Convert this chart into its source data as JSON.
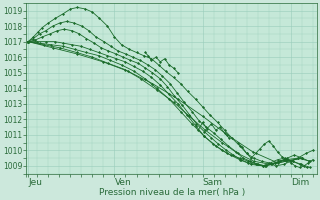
{
  "bg_color": "#cce8dc",
  "plot_bg": "#c5e8d8",
  "grid_color": "#99ccbb",
  "line_color": "#1a6b2a",
  "marker_color": "#1a6b2a",
  "axis_label": "Pression niveau de la mer( hPa )",
  "day_labels": [
    "Jeu",
    "Ven",
    "Sam",
    "Dim"
  ],
  "ylim": [
    1008.5,
    1019.5
  ],
  "yticks": [
    1009,
    1010,
    1011,
    1012,
    1013,
    1014,
    1015,
    1016,
    1017,
    1018,
    1019
  ],
  "xlim": [
    0,
    3.3
  ],
  "day_positions": [
    0.02,
    1.0,
    2.0,
    3.0
  ],
  "series": [
    {
      "x": [
        0.02,
        0.08,
        0.13,
        0.18,
        0.25,
        0.33,
        0.42,
        0.5,
        0.58,
        0.67,
        0.75,
        0.83,
        0.92,
        1.0,
        1.08,
        1.17,
        1.25,
        1.33,
        1.42,
        1.5,
        1.58,
        1.67,
        1.75,
        1.83,
        1.92,
        2.0,
        2.08,
        2.17,
        2.25,
        2.33,
        2.42,
        2.5,
        2.58,
        2.67,
        2.75,
        2.83,
        2.92,
        3.0,
        3.08,
        3.17,
        3.25
      ],
      "y": [
        1017.0,
        1017.3,
        1017.6,
        1017.9,
        1018.2,
        1018.5,
        1018.8,
        1019.1,
        1019.2,
        1019.1,
        1018.9,
        1018.5,
        1018.0,
        1017.3,
        1016.8,
        1016.5,
        1016.3,
        1016.1,
        1015.9,
        1015.5,
        1015.1,
        1014.7,
        1014.3,
        1013.8,
        1013.3,
        1012.8,
        1012.3,
        1011.8,
        1011.3,
        1010.8,
        1010.3,
        1009.8,
        1009.5,
        1009.3,
        1009.2,
        1009.0,
        1009.1,
        1009.3,
        1009.5,
        1009.8,
        1010.0
      ]
    },
    {
      "x": [
        0.02,
        0.08,
        0.15,
        0.22,
        0.3,
        0.38,
        0.46,
        0.54,
        0.63,
        0.71,
        0.79,
        0.88,
        0.96,
        1.04,
        1.13,
        1.21,
        1.29,
        1.38,
        1.46,
        1.54,
        1.63,
        1.71,
        1.79,
        1.88,
        1.96,
        2.04,
        2.13,
        2.21,
        2.29,
        2.38,
        2.46,
        2.54,
        2.63,
        2.71,
        2.79,
        2.88,
        2.96,
        3.04,
        3.13,
        3.21
      ],
      "y": [
        1017.0,
        1017.2,
        1017.5,
        1017.7,
        1018.0,
        1018.2,
        1018.3,
        1018.2,
        1018.0,
        1017.7,
        1017.3,
        1017.0,
        1016.7,
        1016.4,
        1016.2,
        1016.0,
        1015.8,
        1015.5,
        1015.2,
        1014.8,
        1014.3,
        1013.7,
        1013.1,
        1012.5,
        1011.9,
        1011.5,
        1011.1,
        1010.7,
        1010.3,
        1009.9,
        1009.5,
        1009.3,
        1009.1,
        1009.0,
        1009.1,
        1009.3,
        1009.5,
        1009.7,
        1009.5,
        1009.3
      ]
    },
    {
      "x": [
        0.02,
        0.1,
        0.18,
        0.27,
        0.35,
        0.43,
        0.52,
        0.6,
        0.68,
        0.77,
        0.85,
        0.93,
        1.02,
        1.1,
        1.18,
        1.27,
        1.35,
        1.43,
        1.52,
        1.6,
        1.68,
        1.77,
        1.85,
        1.93,
        2.02,
        2.1,
        2.18,
        2.27,
        2.35,
        2.43,
        2.52,
        2.6,
        2.68,
        2.77,
        2.85,
        2.93,
        3.02,
        3.1,
        3.18
      ],
      "y": [
        1017.0,
        1017.1,
        1017.3,
        1017.5,
        1017.7,
        1017.8,
        1017.7,
        1017.5,
        1017.2,
        1016.9,
        1016.6,
        1016.4,
        1016.2,
        1016.0,
        1015.8,
        1015.6,
        1015.3,
        1015.0,
        1014.6,
        1014.1,
        1013.5,
        1012.9,
        1012.3,
        1011.7,
        1011.2,
        1010.8,
        1010.4,
        1010.0,
        1009.7,
        1009.4,
        1009.2,
        1009.1,
        1009.0,
        1009.2,
        1009.4,
        1009.5,
        1009.3,
        1009.1,
        1008.9
      ]
    },
    {
      "x": [
        0.02,
        0.12,
        0.22,
        0.32,
        0.42,
        0.52,
        0.62,
        0.72,
        0.82,
        0.92,
        1.02,
        1.12,
        1.22,
        1.32,
        1.42,
        1.52,
        1.62,
        1.72,
        1.82,
        1.92,
        2.02,
        2.12,
        2.22,
        2.32,
        2.42,
        2.52,
        2.62,
        2.72,
        2.82,
        2.92,
        3.02,
        3.12,
        3.22
      ],
      "y": [
        1017.0,
        1017.0,
        1017.0,
        1017.0,
        1016.9,
        1016.8,
        1016.7,
        1016.5,
        1016.3,
        1016.1,
        1015.9,
        1015.7,
        1015.4,
        1015.1,
        1014.7,
        1014.2,
        1013.6,
        1013.0,
        1012.3,
        1011.6,
        1010.9,
        1010.4,
        1010.0,
        1009.7,
        1009.5,
        1009.3,
        1009.1,
        1009.0,
        1009.2,
        1009.4,
        1009.3,
        1009.1,
        1008.9
      ]
    },
    {
      "x": [
        0.02,
        0.15,
        0.28,
        0.42,
        0.55,
        0.68,
        0.82,
        0.95,
        1.08,
        1.22,
        1.35,
        1.48,
        1.62,
        1.75,
        1.88,
        2.02,
        2.15,
        2.28,
        2.42,
        2.55,
        2.68,
        2.82,
        2.95,
        3.08,
        3.22
      ],
      "y": [
        1017.0,
        1016.9,
        1016.8,
        1016.7,
        1016.5,
        1016.3,
        1016.1,
        1015.8,
        1015.5,
        1015.1,
        1014.6,
        1014.0,
        1013.3,
        1012.5,
        1011.7,
        1010.9,
        1010.3,
        1009.8,
        1009.4,
        1009.1,
        1009.0,
        1009.2,
        1009.4,
        1009.5,
        1009.3
      ]
    },
    {
      "x": [
        0.02,
        0.2,
        0.38,
        0.57,
        0.75,
        0.93,
        1.12,
        1.3,
        1.48,
        1.67,
        1.85,
        2.03,
        2.22,
        2.4,
        2.58,
        2.77,
        2.95,
        3.13
      ],
      "y": [
        1017.0,
        1016.8,
        1016.6,
        1016.3,
        1016.0,
        1015.6,
        1015.2,
        1014.6,
        1013.9,
        1013.1,
        1012.2,
        1011.3,
        1010.5,
        1009.8,
        1009.3,
        1009.1,
        1009.3,
        1009.5
      ]
    },
    {
      "x": [
        0.02,
        0.3,
        0.58,
        0.87,
        1.15,
        1.43,
        1.72,
        2.0,
        2.28,
        2.57,
        2.85,
        3.13
      ],
      "y": [
        1017.0,
        1016.6,
        1016.2,
        1015.7,
        1015.1,
        1014.3,
        1013.3,
        1012.2,
        1011.0,
        1009.9,
        1009.2,
        1009.5
      ]
    }
  ],
  "extra_wiggles": [
    {
      "x": [
        1.35,
        1.38,
        1.42,
        1.47,
        1.52,
        1.57,
        1.62,
        1.67,
        1.72
      ],
      "y": [
        1016.3,
        1016.1,
        1015.8,
        1016.0,
        1015.7,
        1015.9,
        1015.5,
        1015.3,
        1015.0
      ]
    },
    {
      "x": [
        1.95,
        2.0,
        2.05,
        2.1,
        2.15,
        2.2,
        2.25,
        2.3
      ],
      "y": [
        1011.3,
        1011.8,
        1011.4,
        1011.7,
        1011.3,
        1011.5,
        1011.1,
        1010.8
      ]
    },
    {
      "x": [
        2.4,
        2.45,
        2.5,
        2.55,
        2.6,
        2.65,
        2.7,
        2.75,
        2.8,
        2.85,
        2.9,
        2.95,
        3.0,
        3.05,
        3.1,
        3.15,
        3.2,
        3.25
      ],
      "y": [
        1010.5,
        1010.2,
        1009.8,
        1009.5,
        1009.8,
        1010.1,
        1010.4,
        1010.6,
        1010.3,
        1009.9,
        1009.6,
        1009.4,
        1009.2,
        1009.0,
        1008.9,
        1009.0,
        1009.2,
        1009.4
      ]
    }
  ]
}
